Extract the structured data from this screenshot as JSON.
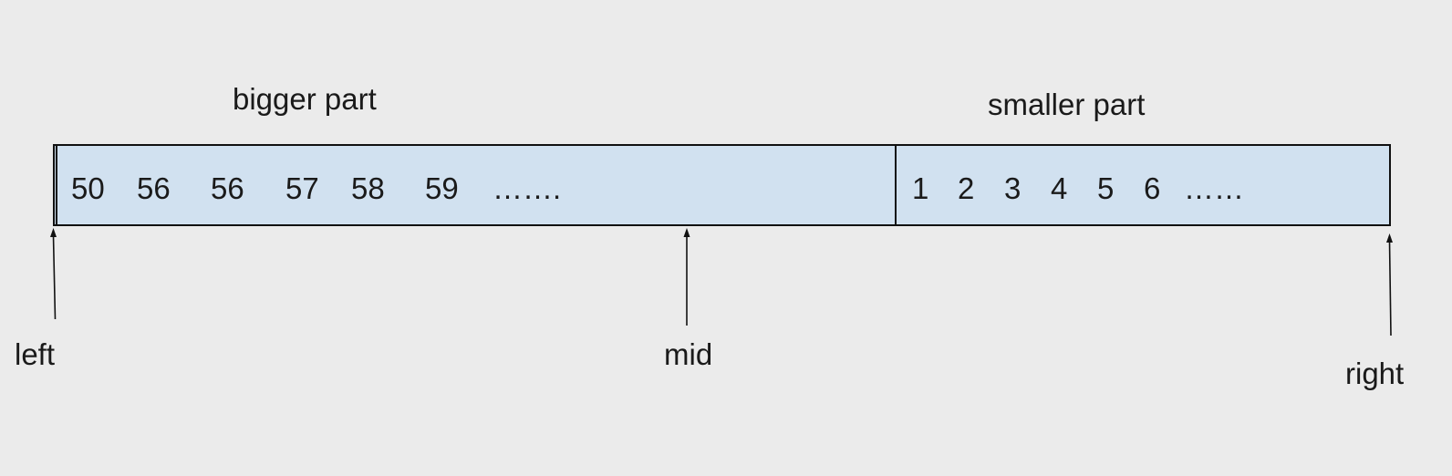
{
  "bigger_part": {
    "label": "bigger part",
    "values": [
      "50",
      "56",
      "56",
      "57",
      "58",
      "59",
      "……."
    ]
  },
  "smaller_part": {
    "label": "smaller part",
    "values": [
      "1",
      "2",
      "3",
      "4",
      "5",
      "6",
      "……"
    ]
  },
  "pointers": {
    "left": "left",
    "mid": "mid",
    "right": "right"
  },
  "colors": {
    "background": "#ebebeb",
    "array_fill": "#d1e1f0",
    "stroke": "#111111"
  }
}
